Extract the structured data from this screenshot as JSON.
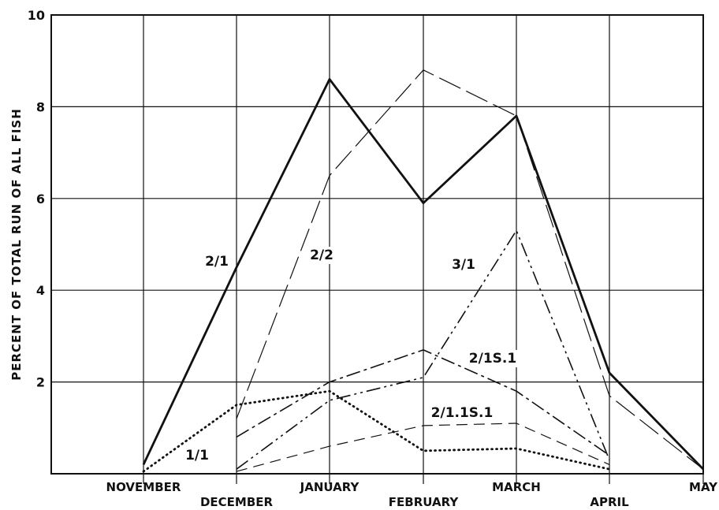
{
  "chart_data": {
    "type": "line",
    "title": "",
    "xlabel": "",
    "ylabel": "PERCENT OF TOTAL RUN OF ALL FISH",
    "categories": [
      "NOVEMBER",
      "DECEMBER",
      "JANUARY",
      "FEBRUARY",
      "MARCH",
      "APRIL",
      "MAY"
    ],
    "yticks": [
      2,
      4,
      6,
      8,
      10
    ],
    "ylim": [
      0,
      10
    ],
    "grid": true,
    "legend": "none",
    "series": [
      {
        "name": "2/1",
        "style": "solid-thick",
        "values": [
          0.2,
          4.5,
          8.6,
          5.9,
          7.8,
          2.2,
          0.1
        ]
      },
      {
        "name": "2/2",
        "style": "long-dash",
        "values": [
          null,
          1.2,
          6.5,
          8.8,
          7.8,
          1.7,
          0.1
        ]
      },
      {
        "name": "3/1",
        "style": "dash-dot-dot",
        "values": [
          null,
          0.1,
          1.6,
          2.1,
          5.3,
          0.3,
          null
        ]
      },
      {
        "name": "2/1S.1",
        "style": "dash-dot",
        "values": [
          null,
          0.8,
          2.0,
          2.7,
          1.8,
          0.4,
          null
        ]
      },
      {
        "name": "2/1.1S.1",
        "style": "dash",
        "values": [
          null,
          0.05,
          0.6,
          1.05,
          1.1,
          0.2,
          null
        ]
      },
      {
        "name": "1/1",
        "style": "dotted",
        "values": [
          0.05,
          1.5,
          1.8,
          0.5,
          0.55,
          0.1,
          null
        ]
      }
    ]
  }
}
